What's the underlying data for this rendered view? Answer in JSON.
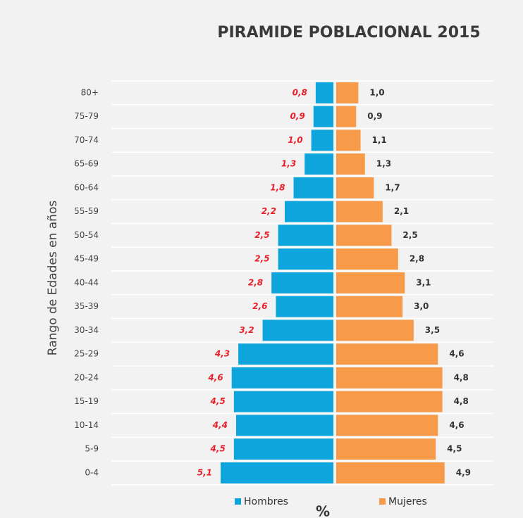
{
  "chart_data": {
    "type": "pyramid",
    "title": "PIRAMIDE POBLACIONAL 2015",
    "y_label": "Rango de Edades en años",
    "x_label": "%",
    "categories": [
      "80+",
      "75-79",
      "70-74",
      "65-69",
      "60-64",
      "55-59",
      "50-54",
      "45-49",
      "40-44",
      "35-39",
      "30-34",
      "25-29",
      "20-24",
      "15-19",
      "10-14",
      "5-9",
      "0-4"
    ],
    "series": [
      {
        "name": "Hombres",
        "color": "#0ea5dc",
        "label_color": "#e8202a",
        "side": "left",
        "values": [
          0.8,
          0.9,
          1.0,
          1.3,
          1.8,
          2.2,
          2.5,
          2.5,
          2.8,
          2.6,
          3.2,
          4.3,
          4.6,
          4.5,
          4.4,
          4.5,
          5.1
        ],
        "value_labels": [
          "0,8",
          "0,9",
          "1,0",
          "1,3",
          "1,8",
          "2,2",
          "2,5",
          "2,5",
          "2,8",
          "2,6",
          "3,2",
          "4,3",
          "4,6",
          "4,5",
          "4,4",
          "4,5",
          "5,1"
        ]
      },
      {
        "name": "Mujeres",
        "color": "#f79a4a",
        "label_color": "#333333",
        "side": "right",
        "values": [
          1.0,
          0.9,
          1.1,
          1.3,
          1.7,
          2.1,
          2.5,
          2.8,
          3.1,
          3.0,
          3.5,
          4.6,
          4.8,
          4.8,
          4.6,
          4.5,
          4.9
        ],
        "value_labels": [
          "1,0",
          "0,9",
          "1,1",
          "1,3",
          "1,7",
          "2,1",
          "2,5",
          "2,8",
          "3,1",
          "3,0",
          "3,5",
          "4,6",
          "4,8",
          "4,8",
          "4,6",
          "4,5",
          "4,9"
        ]
      }
    ],
    "grid": true
  }
}
